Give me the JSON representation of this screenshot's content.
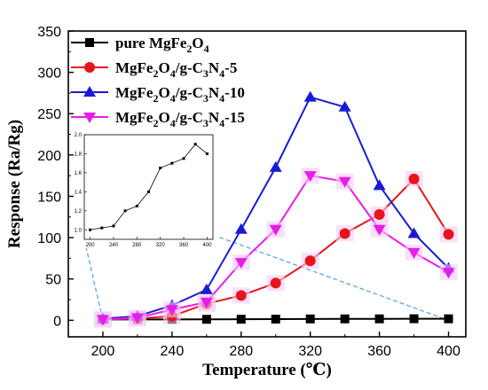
{
  "chart_data": {
    "type": "line",
    "xlabel": "Temperature (℃)",
    "ylabel": "Response (Ra/Rg)",
    "xlim": [
      180,
      410
    ],
    "ylim": [
      -20,
      350
    ],
    "xticks": [
      "200",
      "240",
      "280",
      "320",
      "360",
      "400"
    ],
    "yticks": [
      "0",
      "50",
      "100",
      "150",
      "200",
      "250",
      "300",
      "350"
    ],
    "legend_position": "top-left",
    "grid": false,
    "series": [
      {
        "name": "pure MgFe2O4",
        "color": "#000000",
        "marker": "square",
        "x": [
          200,
          220,
          240,
          260,
          280,
          300,
          320,
          340,
          360,
          380,
          400
        ],
        "y": [
          1.0,
          1.02,
          1.04,
          1.2,
          1.25,
          1.4,
          1.65,
          1.7,
          1.75,
          1.9,
          1.8
        ]
      },
      {
        "name": "MgFe2O4/g-C3N4-5",
        "color": "#e8141b",
        "marker": "circle",
        "x": [
          200,
          220,
          240,
          260,
          280,
          300,
          320,
          340,
          360,
          380,
          400
        ],
        "y": [
          1,
          2,
          5,
          20,
          30,
          45,
          72,
          105,
          128,
          171,
          104
        ]
      },
      {
        "name": "MgFe2O4/g-C3N4-10",
        "color": "#1a1ad6",
        "marker": "triangle-up",
        "x": [
          200,
          220,
          240,
          260,
          280,
          300,
          320,
          340,
          360,
          380,
          400
        ],
        "y": [
          2,
          5,
          18,
          37,
          110,
          185,
          270,
          258,
          163,
          105,
          63
        ]
      },
      {
        "name": "MgFe2O4/g-C3N4-15",
        "color": "#e81ce8",
        "marker": "triangle-down",
        "x": [
          200,
          220,
          240,
          260,
          280,
          300,
          320,
          340,
          360,
          380,
          400
        ],
        "y": [
          1,
          3,
          13,
          22,
          70,
          110,
          175,
          168,
          110,
          82,
          58
        ]
      }
    ],
    "inset": {
      "series_ref": "pure MgFe2O4",
      "xlim": [
        190,
        410
      ],
      "ylim": [
        0.9,
        2.0
      ],
      "xticks": [
        "200",
        "240",
        "280",
        "320",
        "360",
        "400"
      ],
      "yticks": [
        "1.0",
        "1.2",
        "1.4",
        "1.6",
        "1.8",
        "2.0"
      ]
    }
  },
  "legend": {
    "items": [
      {
        "base": "pure MgFe",
        "sub1": "2",
        "mid1": "O",
        "sub2": "4",
        "mid2": "",
        "sub3": "",
        "tail": ""
      },
      {
        "base": "MgFe",
        "sub1": "2",
        "mid1": "O",
        "sub2": "4",
        "mid2": "/g-C",
        "sub3": "3",
        "tail": "N",
        "sub4": "4",
        "end": "-5"
      },
      {
        "base": "MgFe",
        "sub1": "2",
        "mid1": "O",
        "sub2": "4",
        "mid2": "/g-C",
        "sub3": "3",
        "tail": "N",
        "sub4": "4",
        "end": "-10"
      },
      {
        "base": "MgFe",
        "sub1": "2",
        "mid1": "O",
        "sub2": "4",
        "mid2": "/g-C",
        "sub3": "3",
        "tail": "N",
        "sub4": "4",
        "end": "-15"
      }
    ]
  }
}
